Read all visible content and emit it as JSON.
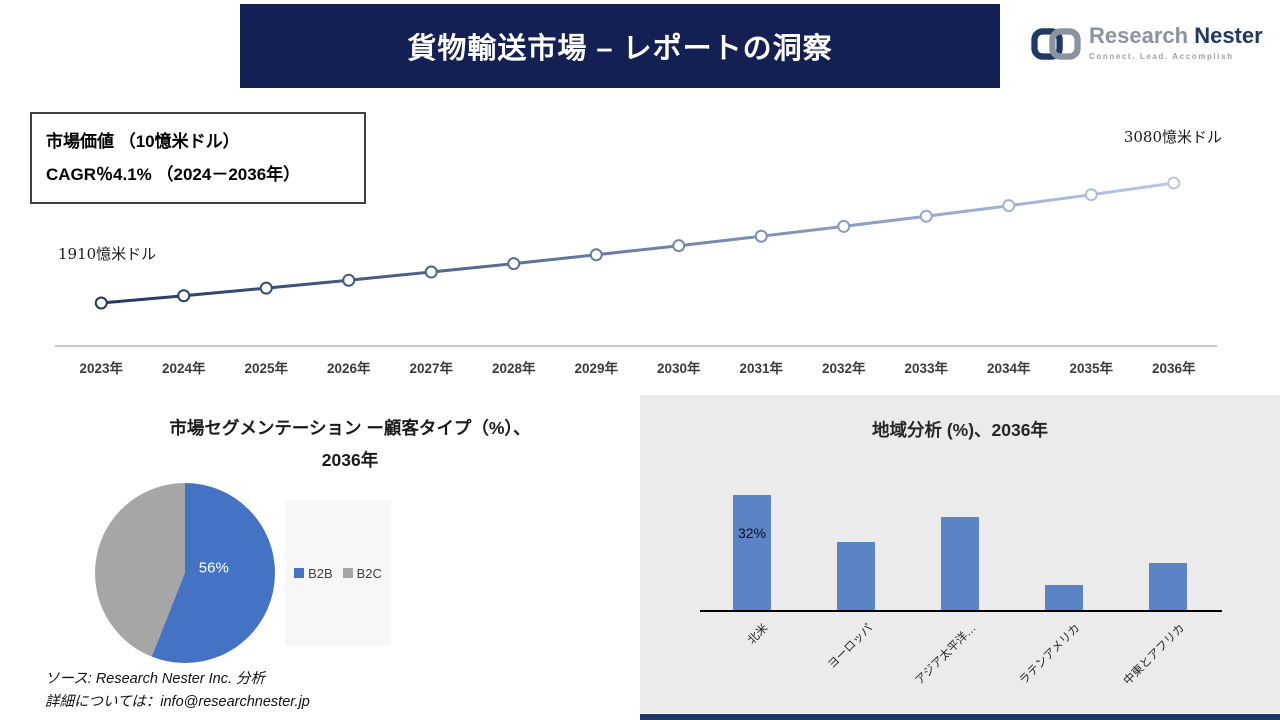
{
  "header": {
    "title": "貨物輸送市場 – レポートの洞察"
  },
  "logo": {
    "brand_first": "Research",
    "brand_second": "Nester",
    "tagline": "Connect. Lead. Accomplish"
  },
  "info_box": {
    "line1": "市場価値 （10憶米ドル）",
    "line2": "CAGR％4.1% （2024－2036年）"
  },
  "source": {
    "line1": "ソース: Research Nester Inc. 分析",
    "line2": "詳細については：info@researchnester.jp"
  },
  "colors": {
    "header_bg": "#141F53",
    "line_gradient_start": "#1F3864",
    "line_gradient_end": "#B8C8EA",
    "pie_b2b": "#4472C4",
    "pie_b2c": "#A6A6A6",
    "bar_blue": "#5B84C7",
    "panel_bg": "#EBEBEB",
    "accent_navy": "#1F3864"
  },
  "chart_data": [
    {
      "type": "line",
      "title": "市場価値 （10憶米ドル）",
      "x": [
        "2023年",
        "2024年",
        "2025年",
        "2026年",
        "2027年",
        "2028年",
        "2029年",
        "2030年",
        "2031年",
        "2032年",
        "2033年",
        "2034年",
        "2035年",
        "2036年"
      ],
      "values": [
        1910,
        1981,
        2055,
        2132,
        2212,
        2294,
        2380,
        2469,
        2561,
        2657,
        2756,
        2859,
        2966,
        3080
      ],
      "start_label": "1910憶米ドル",
      "end_label": "3080憶米ドル",
      "cagr": "4.1%",
      "ylim": [
        1910,
        3080
      ],
      "grid": false,
      "marker": "circle",
      "legend_position": "none"
    },
    {
      "type": "pie",
      "title_line1": "市場セグメンテーション ー顧客タイプ（%）、",
      "title_line2": "2036年",
      "labels": [
        "B2B",
        "B2C"
      ],
      "values": [
        56,
        44
      ],
      "colors": [
        "#4472C4",
        "#A6A6A6"
      ],
      "shown_label": "56%",
      "legend_position": "right"
    },
    {
      "type": "bar",
      "title": "地域分析 (%)、2036年",
      "categories": [
        "北米",
        "ヨーロッパ",
        "アジア太平洋…",
        "ラテンアメリカ",
        "中東とアフリカ"
      ],
      "values": [
        32,
        19,
        26,
        7,
        13
      ],
      "bar_color": "#5B84C7",
      "shown_label": "32%",
      "label_index": 0,
      "xlabel": "",
      "ylabel": "",
      "grid": false,
      "legend_position": "none"
    }
  ]
}
